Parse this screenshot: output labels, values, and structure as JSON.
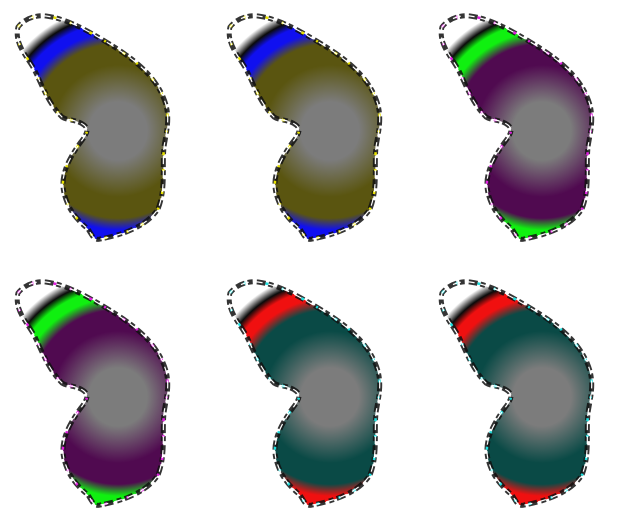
{
  "figure": {
    "grid": {
      "rows": 2,
      "columns": 3
    },
    "background": "#ffffff",
    "panels": [
      {
        "id": "panel-1",
        "row": 1,
        "column": 1,
        "core": "#7c7c7c",
        "inner": "#5a5510",
        "ring": "#1010f0",
        "edge": "#e8e200"
      },
      {
        "id": "panel-2",
        "row": 1,
        "column": 2,
        "core": "#7c7c7c",
        "inner": "#5a5510",
        "ring": "#1010f0",
        "edge": "#e8e200"
      },
      {
        "id": "panel-3",
        "row": 1,
        "column": 3,
        "core": "#7c7c7c",
        "inner": "#500a50",
        "ring": "#10f010",
        "edge": "#e020e0"
      },
      {
        "id": "panel-4",
        "row": 2,
        "column": 1,
        "core": "#7c7c7c",
        "inner": "#500a50",
        "ring": "#10f010",
        "edge": "#e020e0"
      },
      {
        "id": "panel-5",
        "row": 2,
        "column": 2,
        "core": "#7c7c7c",
        "inner": "#0a4a46",
        "ring": "#f01010",
        "edge": "#20e0e0"
      },
      {
        "id": "panel-6",
        "row": 2,
        "column": 3,
        "core": "#7c7c7c",
        "inner": "#0a4a46",
        "ring": "#f01010",
        "edge": "#20e0e0"
      }
    ]
  }
}
